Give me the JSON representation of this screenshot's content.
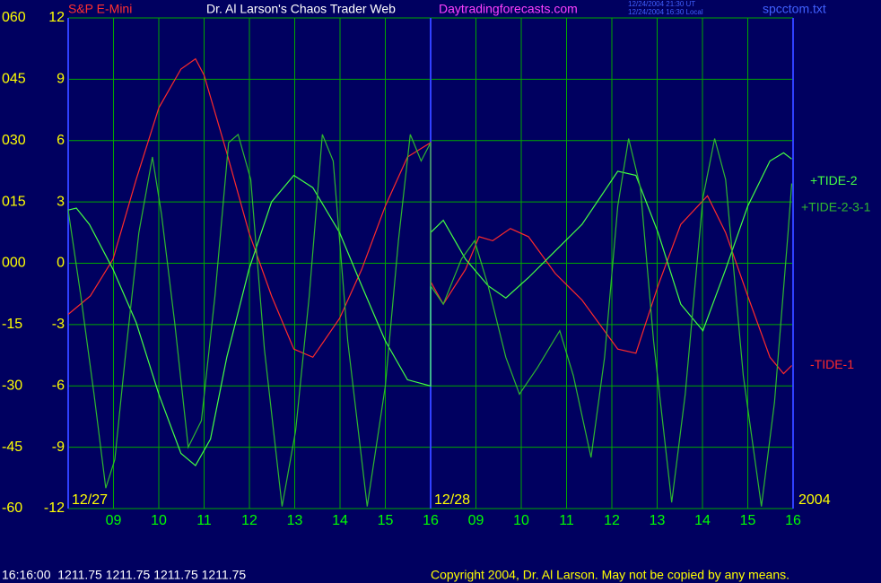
{
  "chart_data": {
    "type": "line",
    "symbol": "S&P E-Mini",
    "title": "Dr. Al Larson's Chaos Trader Web",
    "website": "Daytradingforecasts.com",
    "timestamps": [
      "12/24/2004 21:30 UT",
      "12/24/2004 16:30 Local"
    ],
    "file": "spcctom.txt",
    "year": "2004",
    "day_marks": [
      {
        "x": 0,
        "label": "12/27"
      },
      {
        "x": 8,
        "label": "12/28"
      }
    ],
    "xlim": [
      0,
      16
    ],
    "xticks": [
      {
        "value": 1,
        "label": "09"
      },
      {
        "value": 2,
        "label": "10"
      },
      {
        "value": 3,
        "label": "11"
      },
      {
        "value": 4,
        "label": "12"
      },
      {
        "value": 5,
        "label": "13"
      },
      {
        "value": 6,
        "label": "14"
      },
      {
        "value": 7,
        "label": "15"
      },
      {
        "value": 8,
        "label": "16"
      },
      {
        "value": 9,
        "label": "09"
      },
      {
        "value": 10,
        "label": "10"
      },
      {
        "value": 11,
        "label": "11"
      },
      {
        "value": 12,
        "label": "12"
      },
      {
        "value": 13,
        "label": "13"
      },
      {
        "value": 14,
        "label": "14"
      },
      {
        "value": 15,
        "label": "15"
      },
      {
        "value": 16,
        "label": "16"
      }
    ],
    "ylim": [
      -12,
      12
    ],
    "yticks": [
      12,
      9,
      6,
      3,
      0,
      -3,
      -6,
      -9,
      -12
    ],
    "y2lim": [
      -60,
      60
    ],
    "y2ticks": [
      {
        "value": 60,
        "label": "060"
      },
      {
        "value": 45,
        "label": "045"
      },
      {
        "value": 30,
        "label": "030"
      },
      {
        "value": 15,
        "label": "015"
      },
      {
        "value": 0,
        "label": "000"
      },
      -15,
      -30,
      -45,
      -60
    ],
    "grid": true,
    "series": [
      {
        "name": "-TIDE-1",
        "color": "#ff2a2a",
        "x": [
          0,
          0.49,
          0.99,
          1.5,
          2.0,
          2.49,
          2.81,
          3.0,
          3.5,
          3.99,
          4.49,
          4.98,
          5.4,
          5.99,
          6.48,
          7.0,
          7.49,
          8.0,
          8.0,
          8.28,
          8.77,
          9.07,
          9.37,
          9.76,
          10.16,
          10.75,
          11.34,
          12.13,
          12.53,
          13.02,
          13.52,
          14.11,
          14.51,
          15.0,
          15.49,
          15.79,
          15.97
        ],
        "values": [
          -2.5,
          -1.6,
          0.2,
          4.1,
          7.6,
          9.5,
          10.0,
          9.2,
          5.4,
          1.5,
          -1.6,
          -4.2,
          -4.6,
          -2.7,
          -0.3,
          2.8,
          5.2,
          5.9,
          -0.9,
          -2.0,
          -0.3,
          1.3,
          1.1,
          1.7,
          1.3,
          -0.5,
          -1.8,
          -4.2,
          -4.4,
          -1.1,
          1.9,
          3.3,
          1.5,
          -1.6,
          -4.6,
          -5.4,
          -5.0
        ]
      },
      {
        "name": "+TIDE-2",
        "color": "#44ff44",
        "x": [
          0,
          0.18,
          0.47,
          0.99,
          1.5,
          2.0,
          2.49,
          2.81,
          3.14,
          3.5,
          3.99,
          4.49,
          4.98,
          5.4,
          5.99,
          6.48,
          7.0,
          7.49,
          8.0,
          8.0,
          8.28,
          8.77,
          9.27,
          9.66,
          10.16,
          10.75,
          11.34,
          12.13,
          12.53,
          13.02,
          13.52,
          14.01,
          14.51,
          15.0,
          15.49,
          15.79,
          15.97
        ],
        "values": [
          2.6,
          2.7,
          1.9,
          -0.3,
          -2.9,
          -6.4,
          -9.3,
          -9.9,
          -8.6,
          -4.6,
          -0.3,
          3.0,
          4.3,
          3.7,
          1.5,
          -1.1,
          -3.8,
          -5.7,
          -6.0,
          1.5,
          2.1,
          0.2,
          -1.1,
          -1.7,
          -0.7,
          0.6,
          1.9,
          4.5,
          4.3,
          1.5,
          -2.0,
          -3.3,
          -0.3,
          2.8,
          5.0,
          5.4,
          5.1
        ]
      },
      {
        "name": "+TIDE-2-3-1",
        "color": "#2fb82f",
        "x": [
          0,
          0.28,
          0.57,
          0.83,
          1.03,
          1.26,
          1.56,
          1.86,
          2.06,
          2.35,
          2.65,
          2.94,
          3.24,
          3.54,
          3.75,
          4.03,
          4.33,
          4.72,
          5.02,
          5.32,
          5.61,
          5.85,
          6.17,
          6.6,
          7.0,
          7.29,
          7.55,
          7.79,
          8.0,
          8.0,
          8.28,
          8.68,
          8.97,
          9.27,
          9.66,
          9.96,
          10.36,
          10.85,
          11.15,
          11.54,
          11.84,
          12.13,
          12.37,
          12.63,
          12.92,
          13.32,
          13.62,
          14.01,
          14.27,
          14.51,
          14.9,
          15.3,
          15.59,
          15.89,
          15.97
        ],
        "values": [
          2.6,
          -1.6,
          -6.4,
          -11.0,
          -9.6,
          -4.6,
          1.5,
          5.2,
          2.4,
          -2.9,
          -9.0,
          -7.7,
          -1.6,
          5.9,
          6.3,
          4.1,
          -4.2,
          -11.9,
          -8.2,
          -1.6,
          6.3,
          5.0,
          -3.8,
          -11.9,
          -6.0,
          1.1,
          6.3,
          5.0,
          5.9,
          -1.1,
          -2.0,
          0.2,
          1.1,
          -1.1,
          -4.6,
          -6.4,
          -5.1,
          -3.3,
          -5.5,
          -9.5,
          -4.6,
          2.8,
          6.1,
          3.7,
          -3.8,
          -11.7,
          -6.4,
          3.2,
          6.1,
          4.1,
          -5.5,
          -11.9,
          -6.8,
          1.5,
          3.9
        ]
      }
    ]
  },
  "footer": {
    "quote": "16:16:00  1211.75 1211.75 1211.75 1211.75",
    "copyright": "Copyright 2004, Dr. Al Larson. May not be copied by any means."
  }
}
